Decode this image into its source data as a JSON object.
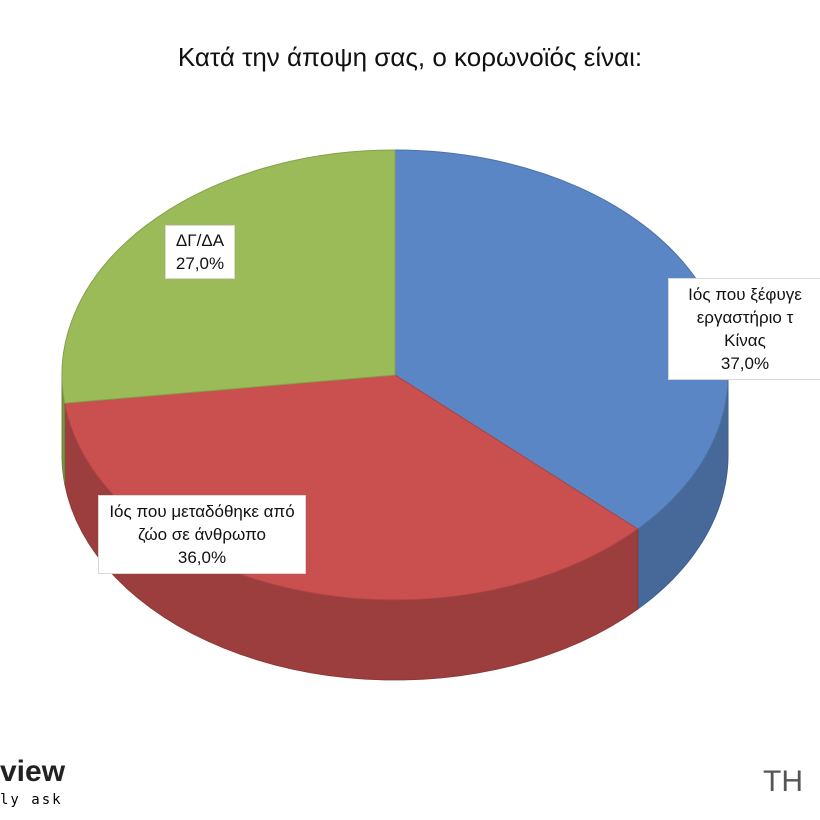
{
  "chart_data": {
    "type": "pie",
    "title": "Κατά την άποψη σας, ο κορωνοϊός είναι:",
    "categories": [
      "Ιός που ξέφυγε εργαστήριο τ Κίνας",
      "Ιός που μεταδόθηκε από ζώο σε άνθρωπο",
      "ΔΓ/ΔΑ"
    ],
    "values": [
      37,
      36,
      27
    ],
    "value_labels": [
      "37,0%",
      "36,0%",
      "27,0%"
    ],
    "colors": [
      "#5b86c5",
      "#c9504f",
      "#9bbb59"
    ]
  },
  "logos": [
    "view",
    "ly ask",
    "TH"
  ]
}
